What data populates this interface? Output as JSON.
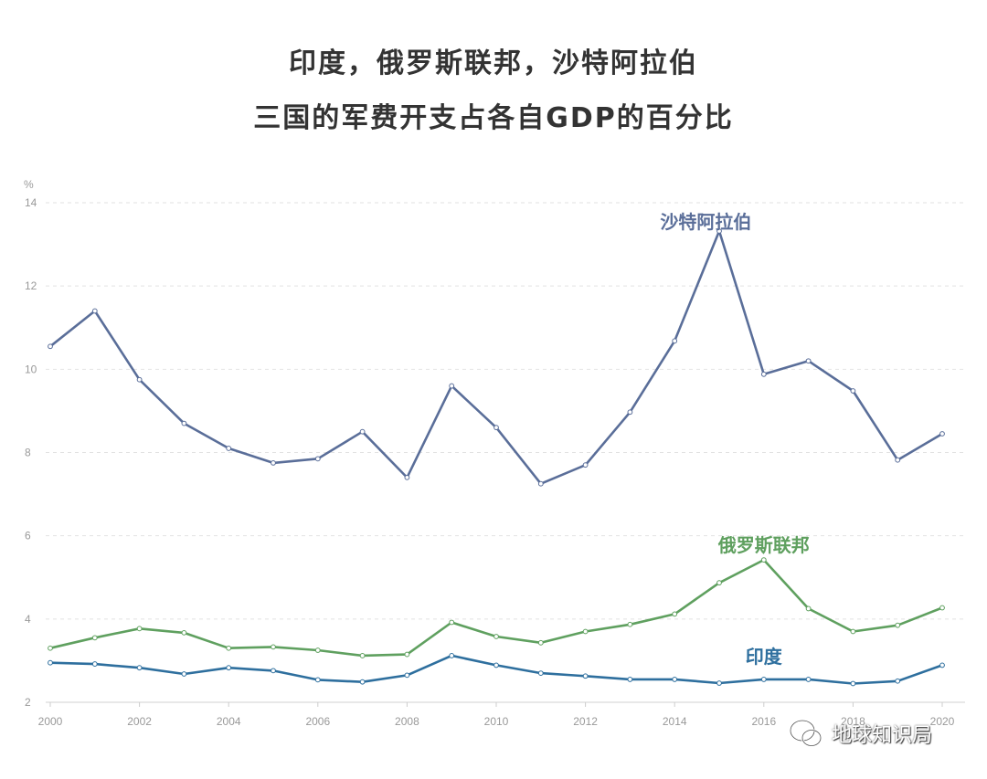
{
  "title_lines": [
    "印度，俄罗斯联邦，沙特阿拉伯",
    "三国的军费开支占各自GDP的百分比"
  ],
  "watermark": "地球知识局",
  "chart_data": {
    "type": "line",
    "ylabel": "%",
    "x": [
      2000,
      2001,
      2002,
      2003,
      2004,
      2005,
      2006,
      2007,
      2008,
      2009,
      2010,
      2011,
      2012,
      2013,
      2014,
      2015,
      2016,
      2017,
      2018,
      2019,
      2020
    ],
    "xticks": [
      2000,
      2002,
      2004,
      2006,
      2008,
      2010,
      2012,
      2014,
      2016,
      2018,
      2020
    ],
    "xtick_labels": [
      "2000",
      "2002",
      "2004",
      "2006",
      "2008",
      "2010",
      "2012",
      "2014",
      "2016",
      "2018",
      "2020"
    ],
    "yticks": [
      2,
      4,
      6,
      8,
      10,
      12,
      14
    ],
    "ytick_labels": [
      "2",
      "4",
      "6",
      "8",
      "10",
      "12",
      "14"
    ],
    "ylim": [
      2,
      14
    ],
    "grid": true,
    "series": [
      {
        "name": "沙特阿拉伯",
        "color": "#5a6e99",
        "values": [
          10.55,
          11.4,
          9.75,
          8.7,
          8.1,
          7.75,
          7.85,
          8.5,
          7.4,
          9.6,
          8.6,
          7.25,
          7.7,
          8.97,
          10.68,
          13.32,
          9.88,
          10.2,
          9.48,
          7.82,
          8.45
        ]
      },
      {
        "name": "俄罗斯联邦",
        "color": "#5fa05f",
        "values": [
          3.3,
          3.55,
          3.77,
          3.67,
          3.3,
          3.33,
          3.25,
          3.12,
          3.15,
          3.92,
          3.58,
          3.43,
          3.7,
          3.87,
          4.12,
          4.87,
          5.42,
          4.25,
          3.7,
          3.85,
          4.27
        ]
      },
      {
        "name": "印度",
        "color": "#2e6f9e",
        "values": [
          2.95,
          2.92,
          2.83,
          2.68,
          2.83,
          2.76,
          2.54,
          2.49,
          2.65,
          3.12,
          2.89,
          2.7,
          2.63,
          2.55,
          2.55,
          2.46,
          2.55,
          2.55,
          2.45,
          2.51,
          2.89
        ]
      }
    ]
  }
}
